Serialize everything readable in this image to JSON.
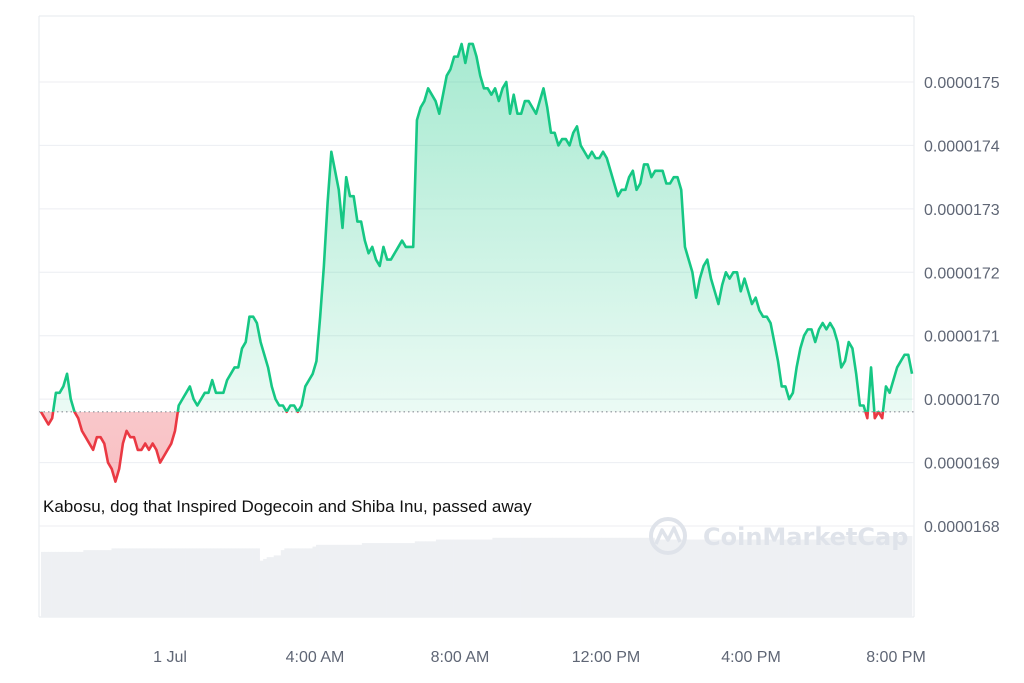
{
  "chart_data": {
    "type": "area",
    "title": "",
    "xlabel": "",
    "ylabel": "",
    "x_tick_labels": [
      "1 Jul",
      "4:00 AM",
      "8:00 AM",
      "12:00 PM",
      "4:00 PM",
      "8:00 PM"
    ],
    "y_tick_labels": [
      "0.0000175",
      "0.0000174",
      "0.0000173",
      "0.0000172",
      "0.0000171",
      "0.0000170",
      "0.0000169",
      "0.0000168"
    ],
    "ylim": [
      1.67e-05,
      1.76e-05
    ],
    "baseline": 1.698e-05,
    "grid": true,
    "up_color": "#16c784",
    "down_color": "#ea3943",
    "annotation": "Kabosu, dog that Inspired Dogecoin and Shiba Inu, passed away",
    "watermark": "CoinMarketCap",
    "series": [
      {
        "values": [
          1.698e-05,
          1.697e-05,
          1.696e-05,
          1.697e-05,
          1.701e-05,
          1.701e-05,
          1.702e-05,
          1.704e-05,
          1.7e-05,
          1.698e-05,
          1.697e-05,
          1.695e-05,
          1.694e-05,
          1.693e-05,
          1.692e-05,
          1.694e-05,
          1.694e-05,
          1.693e-05,
          1.69e-05,
          1.689e-05,
          1.687e-05,
          1.689e-05,
          1.693e-05,
          1.695e-05,
          1.694e-05,
          1.694e-05,
          1.692e-05,
          1.692e-05,
          1.693e-05,
          1.692e-05,
          1.693e-05,
          1.692e-05,
          1.69e-05,
          1.691e-05,
          1.692e-05,
          1.693e-05,
          1.695e-05,
          1.699e-05,
          1.7e-05,
          1.701e-05,
          1.702e-05,
          1.7e-05,
          1.699e-05,
          1.7e-05,
          1.701e-05,
          1.701e-05,
          1.703e-05,
          1.701e-05,
          1.701e-05,
          1.701e-05,
          1.703e-05,
          1.704e-05,
          1.705e-05,
          1.705e-05,
          1.708e-05,
          1.709e-05,
          1.713e-05,
          1.713e-05,
          1.712e-05,
          1.709e-05,
          1.707e-05,
          1.705e-05,
          1.702e-05,
          1.7e-05,
          1.699e-05,
          1.699e-05,
          1.698e-05,
          1.699e-05,
          1.699e-05,
          1.698e-05,
          1.699e-05,
          1.702e-05,
          1.703e-05,
          1.704e-05,
          1.706e-05,
          1.713e-05,
          1.721e-05,
          1.731e-05,
          1.739e-05,
          1.736e-05,
          1.733e-05,
          1.727e-05,
          1.735e-05,
          1.732e-05,
          1.732e-05,
          1.728e-05,
          1.728e-05,
          1.725e-05,
          1.723e-05,
          1.724e-05,
          1.722e-05,
          1.721e-05,
          1.724e-05,
          1.722e-05,
          1.722e-05,
          1.723e-05,
          1.724e-05,
          1.725e-05,
          1.724e-05,
          1.724e-05,
          1.724e-05,
          1.744e-05,
          1.746e-05,
          1.747e-05,
          1.749e-05,
          1.748e-05,
          1.747e-05,
          1.745e-05,
          1.748e-05,
          1.751e-05,
          1.752e-05,
          1.754e-05,
          1.754e-05,
          1.756e-05,
          1.753e-05,
          1.756e-05,
          1.756e-05,
          1.754e-05,
          1.751e-05,
          1.749e-05,
          1.749e-05,
          1.748e-05,
          1.749e-05,
          1.747e-05,
          1.749e-05,
          1.75e-05,
          1.745e-05,
          1.748e-05,
          1.745e-05,
          1.745e-05,
          1.747e-05,
          1.747e-05,
          1.746e-05,
          1.745e-05,
          1.747e-05,
          1.749e-05,
          1.746e-05,
          1.742e-05,
          1.742e-05,
          1.74e-05,
          1.741e-05,
          1.741e-05,
          1.74e-05,
          1.742e-05,
          1.743e-05,
          1.74e-05,
          1.739e-05,
          1.738e-05,
          1.739e-05,
          1.738e-05,
          1.738e-05,
          1.739e-05,
          1.738e-05,
          1.736e-05,
          1.734e-05,
          1.732e-05,
          1.733e-05,
          1.733e-05,
          1.735e-05,
          1.736e-05,
          1.733e-05,
          1.734e-05,
          1.737e-05,
          1.737e-05,
          1.735e-05,
          1.736e-05,
          1.736e-05,
          1.736e-05,
          1.734e-05,
          1.734e-05,
          1.735e-05,
          1.735e-05,
          1.733e-05,
          1.724e-05,
          1.722e-05,
          1.72e-05,
          1.716e-05,
          1.719e-05,
          1.721e-05,
          1.722e-05,
          1.719e-05,
          1.717e-05,
          1.715e-05,
          1.718e-05,
          1.72e-05,
          1.719e-05,
          1.72e-05,
          1.72e-05,
          1.717e-05,
          1.719e-05,
          1.717e-05,
          1.715e-05,
          1.716e-05,
          1.714e-05,
          1.713e-05,
          1.713e-05,
          1.712e-05,
          1.709e-05,
          1.706e-05,
          1.702e-05,
          1.702e-05,
          1.7e-05,
          1.701e-05,
          1.705e-05,
          1.708e-05,
          1.71e-05,
          1.711e-05,
          1.711e-05,
          1.709e-05,
          1.711e-05,
          1.712e-05,
          1.711e-05,
          1.712e-05,
          1.711e-05,
          1.709e-05,
          1.705e-05,
          1.706e-05,
          1.709e-05,
          1.708e-05,
          1.704e-05,
          1.699e-05,
          1.699e-05,
          1.697e-05,
          1.705e-05,
          1.697e-05,
          1.698e-05,
          1.697e-05,
          1.702e-05,
          1.701e-05,
          1.703e-05,
          1.705e-05,
          1.706e-05,
          1.707e-05,
          1.707e-05,
          1.704e-05
        ]
      }
    ],
    "volume": [
      0.37,
      0.37,
      0.37,
      0.37,
      0.37,
      0.37,
      0.37,
      0.37,
      0.37,
      0.37,
      0.37,
      0.37,
      0.38,
      0.38,
      0.38,
      0.38,
      0.38,
      0.38,
      0.38,
      0.38,
      0.39,
      0.39,
      0.39,
      0.39,
      0.39,
      0.39,
      0.39,
      0.39,
      0.39,
      0.39,
      0.39,
      0.39,
      0.39,
      0.39,
      0.39,
      0.39,
      0.39,
      0.39,
      0.39,
      0.39,
      0.39,
      0.39,
      0.39,
      0.39,
      0.39,
      0.39,
      0.39,
      0.39,
      0.39,
      0.39,
      0.39,
      0.39,
      0.39,
      0.39,
      0.39,
      0.39,
      0.39,
      0.39,
      0.39,
      0.39,
      0.39,
      0.39,
      0.32,
      0.33,
      0.34,
      0.34,
      0.35,
      0.35,
      0.38,
      0.39,
      0.39,
      0.39,
      0.39,
      0.39,
      0.39,
      0.39,
      0.39,
      0.4,
      0.41,
      0.41,
      0.41,
      0.41,
      0.41,
      0.41,
      0.41,
      0.41,
      0.41,
      0.41,
      0.41,
      0.41,
      0.41,
      0.42,
      0.42,
      0.42,
      0.42,
      0.42,
      0.42,
      0.42,
      0.42,
      0.42,
      0.42,
      0.42,
      0.42,
      0.42,
      0.42,
      0.42,
      0.43,
      0.43,
      0.43,
      0.43,
      0.43,
      0.43,
      0.44,
      0.44,
      0.44,
      0.44,
      0.44,
      0.44,
      0.44,
      0.44,
      0.44,
      0.44,
      0.44,
      0.44,
      0.44,
      0.44,
      0.44,
      0.44,
      0.45,
      0.45,
      0.45,
      0.45,
      0.45,
      0.45,
      0.45,
      0.45,
      0.45,
      0.45,
      0.45,
      0.45,
      0.45,
      0.45,
      0.45,
      0.45,
      0.45,
      0.45,
      0.45,
      0.45,
      0.45,
      0.45,
      0.45,
      0.45,
      0.45,
      0.45,
      0.45,
      0.45,
      0.45,
      0.45,
      0.45,
      0.45,
      0.45,
      0.45,
      0.45,
      0.45,
      0.45,
      0.45,
      0.45,
      0.45,
      0.45,
      0.45,
      0.45,
      0.45,
      0.45,
      0.45,
      0.44,
      0.44,
      0.44,
      0.44,
      0.44,
      0.44,
      0.44,
      0.44,
      0.44,
      0.44,
      0.44,
      0.44,
      0.44,
      0.44,
      0.44,
      0.44,
      0.44,
      0.44,
      0.44,
      0.44,
      0.44,
      0.44,
      0.44,
      0.44,
      0.44,
      0.44,
      0.44,
      0.44,
      0.44,
      0.44,
      0.44,
      0.44,
      0.44,
      0.44,
      0.44,
      0.44,
      0.44,
      0.44,
      0.44,
      0.44,
      0.44,
      0.44,
      0.44,
      0.44,
      0.44,
      0.44,
      0.45,
      0.45,
      0.45,
      0.45,
      0.45,
      0.45,
      0.45,
      0.46,
      0.46,
      0.46,
      0.46,
      0.46,
      0.46,
      0.46,
      0.46,
      0.46,
      0.46,
      0.46,
      0.46,
      0.46,
      0.46,
      0.46,
      0.46,
      0.46,
      0.46,
      0.46,
      0.46
    ]
  }
}
